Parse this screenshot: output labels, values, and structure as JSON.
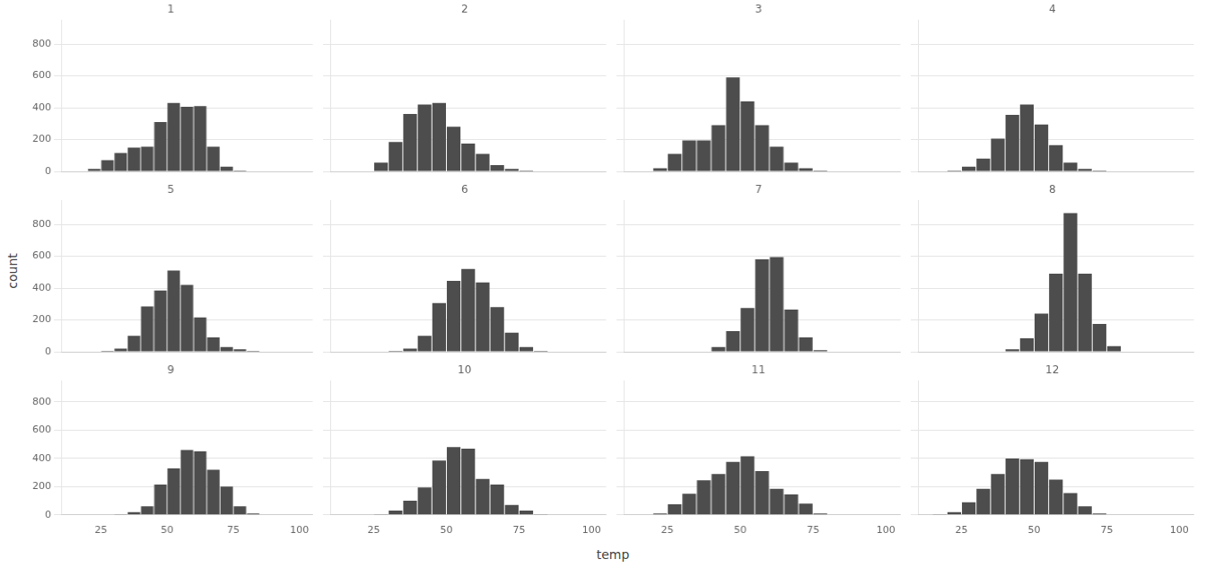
{
  "chart_data": {
    "type": "histogram",
    "xlabel": "temp",
    "ylabel": "count",
    "bins": [
      10,
      15,
      20,
      25,
      30,
      35,
      40,
      45,
      50,
      55,
      60,
      65,
      70,
      75,
      80,
      85,
      90,
      95,
      100,
      105
    ],
    "xlim": [
      10,
      105
    ],
    "ylim": [
      0,
      950
    ],
    "xticks": [
      25,
      50,
      75,
      100
    ],
    "yticks": [
      0,
      200,
      400,
      600,
      800
    ],
    "grid": true,
    "color": "#4d4d4d",
    "series": [
      {
        "name": "1",
        "values": [
          0,
          0,
          15,
          70,
          115,
          150,
          155,
          310,
          430,
          405,
          410,
          155,
          30,
          5,
          0,
          0,
          0,
          0,
          0
        ]
      },
      {
        "name": "2",
        "values": [
          0,
          0,
          0,
          55,
          185,
          360,
          420,
          430,
          280,
          175,
          110,
          40,
          15,
          5,
          0,
          0,
          0,
          0,
          0
        ]
      },
      {
        "name": "3",
        "values": [
          0,
          0,
          20,
          110,
          195,
          195,
          290,
          590,
          440,
          290,
          155,
          55,
          20,
          5,
          0,
          0,
          0,
          0,
          0
        ]
      },
      {
        "name": "4",
        "values": [
          0,
          0,
          5,
          30,
          80,
          205,
          355,
          420,
          295,
          165,
          55,
          15,
          5,
          0,
          0,
          0,
          0,
          0,
          0
        ]
      },
      {
        "name": "5",
        "values": [
          0,
          0,
          0,
          5,
          20,
          100,
          285,
          385,
          510,
          420,
          215,
          90,
          30,
          15,
          5,
          0,
          0,
          0,
          0
        ]
      },
      {
        "name": "6",
        "values": [
          0,
          0,
          0,
          0,
          5,
          20,
          100,
          305,
          445,
          520,
          435,
          280,
          120,
          30,
          5,
          0,
          0,
          0,
          0
        ]
      },
      {
        "name": "7",
        "values": [
          0,
          0,
          0,
          0,
          0,
          0,
          30,
          130,
          275,
          580,
          595,
          265,
          90,
          10,
          0,
          0,
          0,
          0,
          0
        ]
      },
      {
        "name": "8",
        "values": [
          0,
          0,
          0,
          0,
          0,
          0,
          15,
          85,
          240,
          490,
          870,
          490,
          175,
          35,
          0,
          0,
          0,
          0,
          0
        ]
      },
      {
        "name": "9",
        "values": [
          0,
          0,
          0,
          0,
          5,
          20,
          60,
          215,
          330,
          460,
          450,
          320,
          200,
          60,
          10,
          0,
          0,
          0,
          0
        ]
      },
      {
        "name": "10",
        "values": [
          0,
          0,
          0,
          5,
          30,
          100,
          195,
          385,
          480,
          470,
          255,
          215,
          70,
          30,
          5,
          0,
          0,
          0,
          0
        ]
      },
      {
        "name": "11",
        "values": [
          0,
          0,
          10,
          75,
          150,
          245,
          290,
          375,
          415,
          310,
          185,
          145,
          80,
          10,
          0,
          0,
          0,
          0,
          0
        ]
      },
      {
        "name": "12",
        "values": [
          0,
          5,
          20,
          90,
          185,
          290,
          400,
          395,
          375,
          250,
          155,
          60,
          10,
          0,
          0,
          0,
          0,
          0,
          0
        ]
      }
    ]
  }
}
